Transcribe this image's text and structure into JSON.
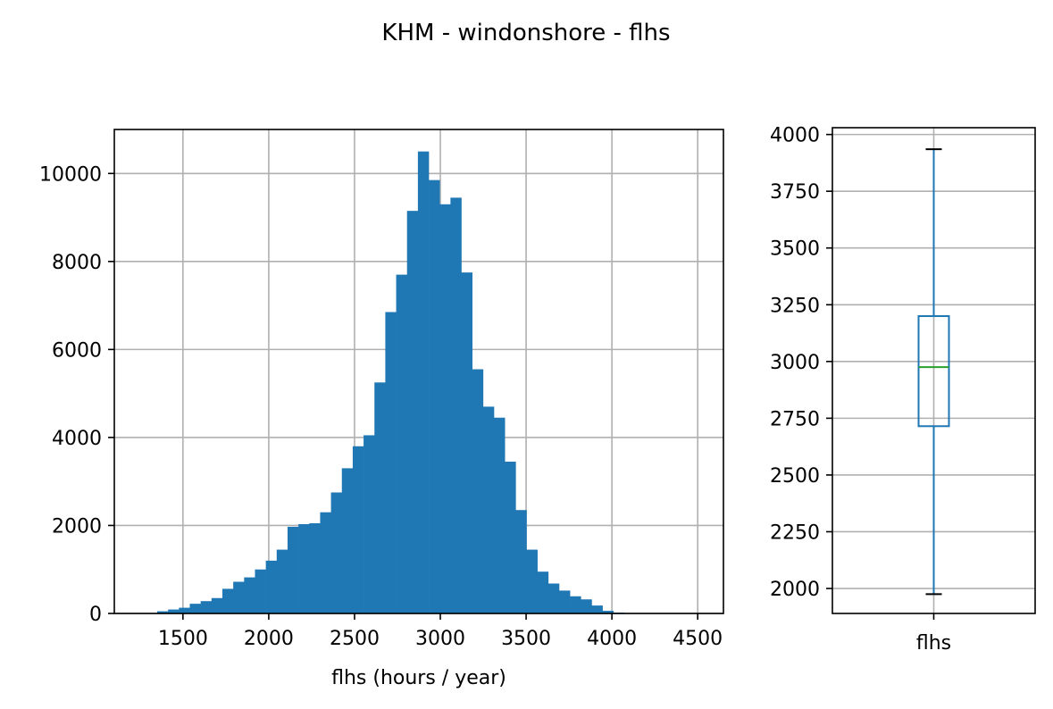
{
  "title": "KHM - windonshore - flhs",
  "colors": {
    "bar": "#1f77b4",
    "box": "#1f77b4",
    "median": "#2ca02c",
    "caps": "#000000",
    "grid": "#b0b0b0"
  },
  "chart_data": [
    {
      "type": "bar",
      "subtype": "histogram",
      "xlabel": "flhs (hours / year)",
      "ylabel": "",
      "xlim": [
        1100,
        4650
      ],
      "ylim": [
        0,
        11000
      ],
      "xticks": [
        1500,
        2000,
        2500,
        3000,
        3500,
        4000,
        4500
      ],
      "xtick_labels": [
        "1500",
        "2000",
        "2500",
        "3000",
        "3500",
        "4000",
        "4500"
      ],
      "yticks": [
        0,
        2000,
        4000,
        6000,
        8000,
        10000
      ],
      "ytick_labels": [
        "0",
        "2000",
        "4000",
        "6000",
        "8000",
        "10000"
      ],
      "grid": true,
      "bin_start": 1350,
      "bin_width": 63.3,
      "values": [
        50,
        90,
        130,
        220,
        280,
        350,
        560,
        720,
        820,
        1000,
        1200,
        1450,
        1970,
        2030,
        2050,
        2300,
        2750,
        3300,
        3800,
        4050,
        5250,
        6850,
        7700,
        9150,
        10500,
        9850,
        9300,
        9450,
        7750,
        5550,
        4700,
        4450,
        3450,
        2350,
        1450,
        950,
        680,
        520,
        390,
        320,
        180,
        60,
        20
      ]
    },
    {
      "type": "box",
      "categories": [
        "flhs"
      ],
      "ylim": [
        1890,
        4030
      ],
      "yticks": [
        2000,
        2250,
        2500,
        2750,
        3000,
        3250,
        3500,
        3750,
        4000
      ],
      "ytick_labels": [
        "2000",
        "2250",
        "2500",
        "2750",
        "3000",
        "3250",
        "3500",
        "3750",
        "4000"
      ],
      "grid": true,
      "whisker_low": 1975,
      "q1": 2715,
      "median": 2975,
      "q3": 3200,
      "whisker_high": 3935
    }
  ]
}
